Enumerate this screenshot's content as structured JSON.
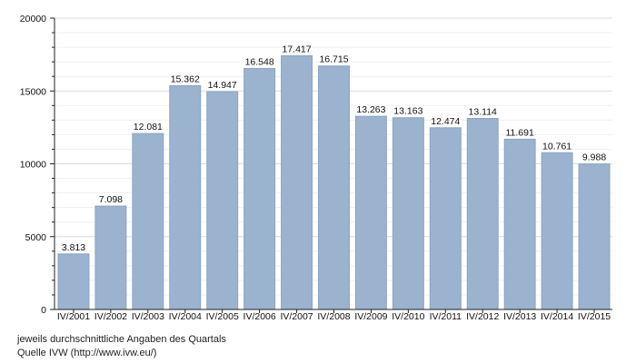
{
  "chart_data": {
    "type": "bar",
    "categories": [
      "IV/2001",
      "IV/2002",
      "IV/2003",
      "IV/2004",
      "IV/2005",
      "IV/2006",
      "IV/2007",
      "IV/2008",
      "IV/2009",
      "IV/2010",
      "IV/2011",
      "IV/2012",
      "IV/2013",
      "IV/2014",
      "IV/2015"
    ],
    "values": [
      3813,
      7098,
      12081,
      15362,
      14947,
      16548,
      17417,
      16715,
      13263,
      13163,
      12474,
      13114,
      11691,
      10761,
      9988
    ],
    "value_labels": [
      "3.813",
      "7.098",
      "12.081",
      "15.362",
      "14.947",
      "16.548",
      "17.417",
      "16.715",
      "13.263",
      "13.163",
      "12.474",
      "13.114",
      "11.691",
      "10.761",
      "9.988"
    ],
    "yticks": [
      0,
      5000,
      10000,
      15000,
      20000
    ],
    "ylim": [
      0,
      20000
    ],
    "grid": true,
    "bar_color": "#9bb3cf",
    "bar_edge_color": "#8aa3c0"
  },
  "footnotes": {
    "line1": "jeweils durchschnittliche Angaben des Quartals",
    "line2": "Quelle IVW (http://www.ivw.eu/)"
  }
}
